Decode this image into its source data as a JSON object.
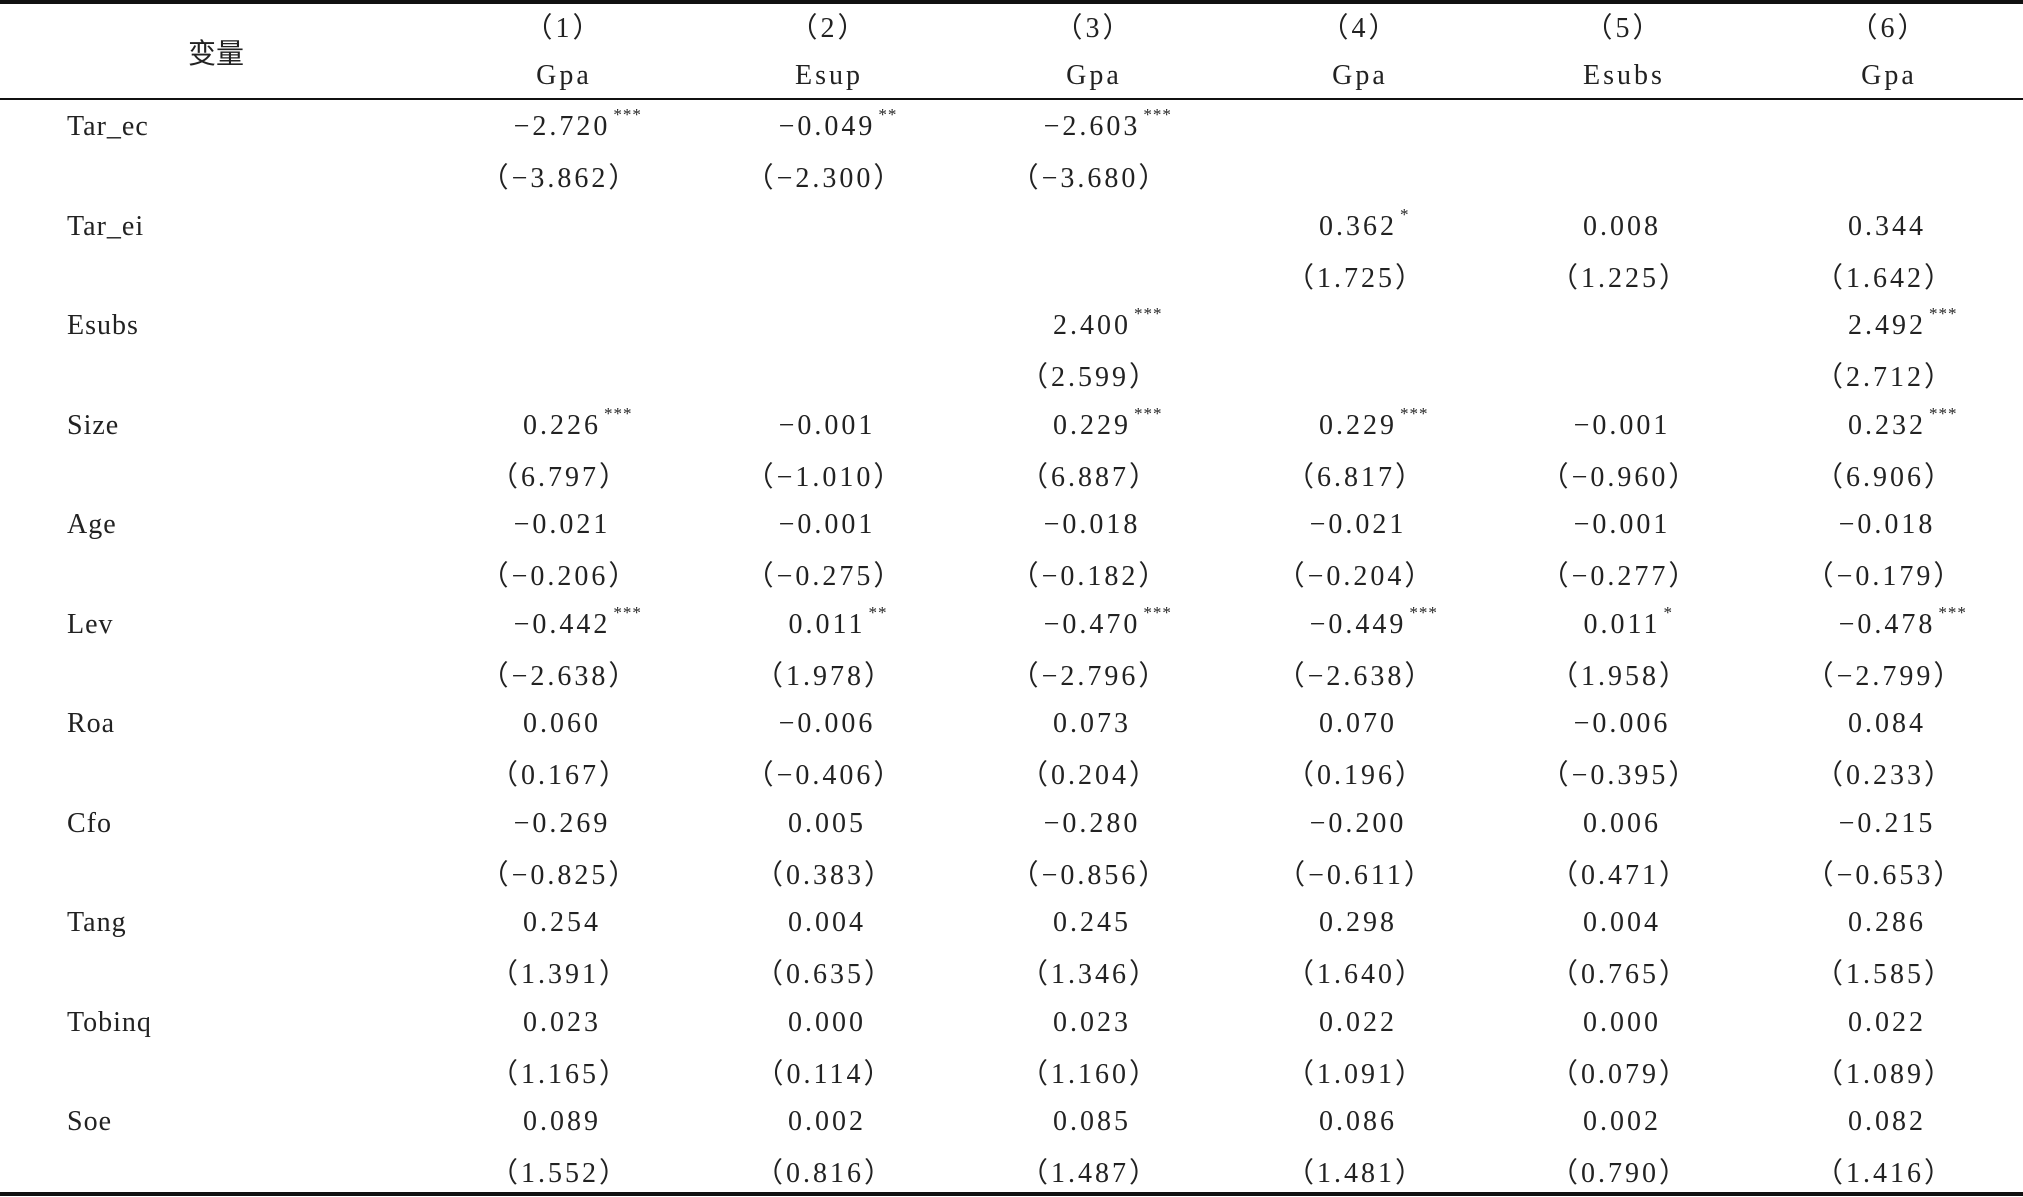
{
  "table": {
    "header": {
      "label": "变量",
      "columns": [
        {
          "num": "（1）",
          "dep": "Gpa"
        },
        {
          "num": "（2）",
          "dep": "Esup"
        },
        {
          "num": "（3）",
          "dep": "Gpa"
        },
        {
          "num": "（4）",
          "dep": "Gpa"
        },
        {
          "num": "（5）",
          "dep": "Esubs"
        },
        {
          "num": "（6）",
          "dep": "Gpa"
        }
      ]
    },
    "rows": [
      {
        "name": "Tar_ec",
        "cells": [
          {
            "coef": "−2.720",
            "stars": "***",
            "t": "（−3.862）"
          },
          {
            "coef": "−0.049",
            "stars": "**",
            "t": "（−2.300）"
          },
          {
            "coef": "−2.603",
            "stars": "***",
            "t": "（−3.680）"
          },
          null,
          null,
          null
        ]
      },
      {
        "name": "Tar_ei",
        "cells": [
          null,
          null,
          null,
          {
            "coef": "0.362",
            "stars": "*",
            "t": "（1.725）"
          },
          {
            "coef": "0.008",
            "t": "（1.225）"
          },
          {
            "coef": "0.344",
            "t": "（1.642）"
          }
        ]
      },
      {
        "name": "Esubs",
        "cells": [
          null,
          null,
          {
            "coef": "2.400",
            "stars": "***",
            "t": "（2.599）"
          },
          null,
          null,
          {
            "coef": "2.492",
            "stars": "***",
            "t": "（2.712）"
          }
        ]
      },
      {
        "name": "Size",
        "cells": [
          {
            "coef": "0.226",
            "stars": "***",
            "t": "（6.797）"
          },
          {
            "coef": "−0.001",
            "t": "（−1.010）"
          },
          {
            "coef": "0.229",
            "stars": "***",
            "t": "（6.887）"
          },
          {
            "coef": "0.229",
            "stars": "***",
            "t": "（6.817）"
          },
          {
            "coef": "−0.001",
            "t": "（−0.960）"
          },
          {
            "coef": "0.232",
            "stars": "***",
            "t": "（6.906）"
          }
        ]
      },
      {
        "name": "Age",
        "cells": [
          {
            "coef": "−0.021",
            "t": "（−0.206）"
          },
          {
            "coef": "−0.001",
            "t": "（−0.275）"
          },
          {
            "coef": "−0.018",
            "t": "（−0.182）"
          },
          {
            "coef": "−0.021",
            "t": "（−0.204）"
          },
          {
            "coef": "−0.001",
            "t": "（−0.277）"
          },
          {
            "coef": "−0.018",
            "t": "（−0.179）"
          }
        ]
      },
      {
        "name": "Lev",
        "cells": [
          {
            "coef": "−0.442",
            "stars": "***",
            "t": "（−2.638）"
          },
          {
            "coef": "0.011",
            "stars": "**",
            "t": "（1.978）"
          },
          {
            "coef": "−0.470",
            "stars": "***",
            "t": "（−2.796）"
          },
          {
            "coef": "−0.449",
            "stars": "***",
            "t": "（−2.638）"
          },
          {
            "coef": "0.011",
            "stars": "*",
            "t": "（1.958）"
          },
          {
            "coef": "−0.478",
            "stars": "***",
            "t": "（−2.799）"
          }
        ]
      },
      {
        "name": "Roa",
        "cells": [
          {
            "coef": "0.060",
            "t": "（0.167）"
          },
          {
            "coef": "−0.006",
            "t": "（−0.406）"
          },
          {
            "coef": "0.073",
            "t": "（0.204）"
          },
          {
            "coef": "0.070",
            "t": "（0.196）"
          },
          {
            "coef": "−0.006",
            "t": "（−0.395）"
          },
          {
            "coef": "0.084",
            "t": "（0.233）"
          }
        ]
      },
      {
        "name": "Cfo",
        "cells": [
          {
            "coef": "−0.269",
            "t": "（−0.825）"
          },
          {
            "coef": "0.005",
            "t": "（0.383）"
          },
          {
            "coef": "−0.280",
            "t": "（−0.856）"
          },
          {
            "coef": "−0.200",
            "t": "（−0.611）"
          },
          {
            "coef": "0.006",
            "t": "（0.471）"
          },
          {
            "coef": "−0.215",
            "t": "（−0.653）"
          }
        ]
      },
      {
        "name": "Tang",
        "cells": [
          {
            "coef": "0.254",
            "t": "（1.391）"
          },
          {
            "coef": "0.004",
            "t": "（0.635）"
          },
          {
            "coef": "0.245",
            "t": "（1.346）"
          },
          {
            "coef": "0.298",
            "t": "（1.640）"
          },
          {
            "coef": "0.004",
            "t": "（0.765）"
          },
          {
            "coef": "0.286",
            "t": "（1.585）"
          }
        ]
      },
      {
        "name": "Tobinq",
        "cells": [
          {
            "coef": "0.023",
            "t": "（1.165）"
          },
          {
            "coef": "0.000",
            "t": "（0.114）"
          },
          {
            "coef": "0.023",
            "t": "（1.160）"
          },
          {
            "coef": "0.022",
            "t": "（1.091）"
          },
          {
            "coef": "0.000",
            "t": "（0.079）"
          },
          {
            "coef": "0.022",
            "t": "（1.089）"
          }
        ]
      },
      {
        "name": "Soe",
        "cells": [
          {
            "coef": "0.089",
            "t": "（1.552）"
          },
          {
            "coef": "0.002",
            "t": "（0.816）"
          },
          {
            "coef": "0.085",
            "t": "（1.487）"
          },
          {
            "coef": "0.086",
            "t": "（1.481）"
          },
          {
            "coef": "0.002",
            "t": "（0.790）"
          },
          {
            "coef": "0.082",
            "t": "（1.416）"
          }
        ]
      }
    ]
  }
}
